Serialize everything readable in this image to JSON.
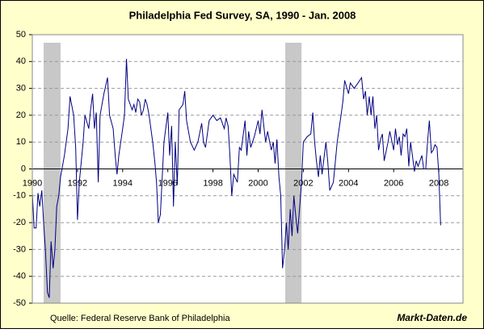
{
  "chart_data": {
    "type": "line",
    "title": "Philadelphia Fed Survey, SA, 1990 - Jan. 2008",
    "source": "Quelle: Federal Reserve Bank of Philadelphia",
    "brand": "Markt-Daten.de",
    "color": "#000080",
    "grid": true,
    "shaded_periods": [
      [
        1990.5,
        1991.25
      ],
      [
        2001.2,
        2001.92
      ]
    ],
    "xlim": [
      1990,
      2009.07
    ],
    "xticks": [
      1990,
      1992,
      1994,
      1996,
      1998,
      2000,
      2002,
      2004,
      2006,
      2008
    ],
    "ylim": [
      -50,
      50
    ],
    "yticks": [
      -50,
      -40,
      -30,
      -20,
      -10,
      0,
      10,
      20,
      30,
      40,
      50
    ],
    "x": [
      1990.0,
      1990.08,
      1990.17,
      1990.25,
      1990.33,
      1990.42,
      1990.5,
      1990.58,
      1990.67,
      1990.75,
      1990.83,
      1990.92,
      1991.0,
      1991.08,
      1991.17,
      1991.25,
      1991.42,
      1991.58,
      1991.67,
      1991.83,
      1991.92,
      1992.0,
      1992.08,
      1992.25,
      1992.33,
      1992.5,
      1992.58,
      1992.67,
      1992.75,
      1992.83,
      1992.92,
      1993.0,
      1993.17,
      1993.33,
      1993.42,
      1993.58,
      1993.67,
      1993.75,
      1993.83,
      1994.0,
      1994.08,
      1994.17,
      1994.25,
      1994.42,
      1994.5,
      1994.58,
      1994.67,
      1994.75,
      1994.83,
      1994.92,
      1995.0,
      1995.08,
      1995.17,
      1995.33,
      1995.42,
      1995.5,
      1995.58,
      1995.67,
      1995.83,
      1996.0,
      1996.08,
      1996.17,
      1996.25,
      1996.33,
      1996.42,
      1996.5,
      1996.67,
      1996.75,
      1996.83,
      1997.0,
      1997.17,
      1997.33,
      1997.5,
      1997.58,
      1997.67,
      1997.83,
      1998.0,
      1998.17,
      1998.33,
      1998.5,
      1998.58,
      1998.67,
      1998.75,
      1998.83,
      1998.92,
      1999.08,
      1999.17,
      1999.25,
      1999.42,
      1999.5,
      1999.58,
      1999.67,
      1999.75,
      1999.83,
      2000.0,
      2000.08,
      2000.17,
      2000.33,
      2000.42,
      2000.58,
      2000.67,
      2000.75,
      2000.83,
      2000.92,
      2001.0,
      2001.08,
      2001.17,
      2001.25,
      2001.33,
      2001.42,
      2001.5,
      2001.58,
      2001.67,
      2001.75,
      2001.83,
      2001.92,
      2002.0,
      2002.17,
      2002.33,
      2002.42,
      2002.5,
      2002.58,
      2002.67,
      2002.75,
      2002.83,
      2003.0,
      2003.08,
      2003.17,
      2003.33,
      2003.5,
      2003.67,
      2003.75,
      2003.83,
      2004.0,
      2004.08,
      2004.25,
      2004.42,
      2004.58,
      2004.67,
      2004.75,
      2004.83,
      2004.92,
      2005.0,
      2005.08,
      2005.17,
      2005.25,
      2005.33,
      2005.42,
      2005.5,
      2005.58,
      2005.75,
      2005.83,
      2006.0,
      2006.08,
      2006.17,
      2006.25,
      2006.33,
      2006.42,
      2006.5,
      2006.58,
      2006.67,
      2006.75,
      2006.83,
      2006.92,
      2007.0,
      2007.08,
      2007.25,
      2007.33,
      2007.42,
      2007.5,
      2007.58,
      2007.67,
      2007.75,
      2007.83,
      2007.92,
      2008.0,
      2008.08
    ],
    "values": [
      -9,
      -22,
      -22,
      -9,
      -14,
      -8,
      -20,
      -30,
      -46,
      -48,
      -27,
      -37,
      -30,
      -14,
      -10,
      -3,
      5,
      15,
      27,
      20,
      8,
      -19,
      -5,
      10,
      20,
      15,
      22,
      28,
      15,
      21,
      -5,
      20,
      28,
      34,
      20,
      15,
      5,
      -2,
      5,
      15,
      20,
      41,
      26,
      22,
      24,
      21,
      26,
      25,
      20,
      22,
      26,
      24,
      20,
      10,
      3,
      -5,
      -20,
      -17,
      10,
      21,
      5,
      16,
      -14,
      10,
      -6,
      22,
      24,
      29,
      18,
      10,
      7,
      10,
      17,
      10,
      8,
      18,
      20,
      18,
      19,
      15,
      19,
      16,
      5,
      -10,
      -2,
      -5,
      8,
      7,
      18,
      5,
      14,
      8,
      10,
      12,
      18,
      13,
      22,
      10,
      14,
      7,
      10,
      2,
      11,
      -3,
      -10,
      -37,
      -30,
      -20,
      -30,
      -15,
      -25,
      -10,
      -18,
      -24,
      -15,
      -5,
      10,
      12,
      13,
      21,
      10,
      3,
      -3,
      5,
      -2,
      10,
      3,
      -8,
      -5,
      10,
      20,
      25,
      33,
      28,
      32,
      30,
      32,
      34,
      26,
      29,
      20,
      27,
      20,
      27,
      15,
      20,
      7,
      11,
      13,
      3,
      10,
      14,
      7,
      15,
      9,
      12,
      5,
      13,
      12,
      15,
      1,
      10,
      5,
      -1,
      3,
      1,
      5,
      0,
      0,
      10,
      18,
      6,
      7,
      9,
      8,
      -2,
      -21
    ]
  }
}
